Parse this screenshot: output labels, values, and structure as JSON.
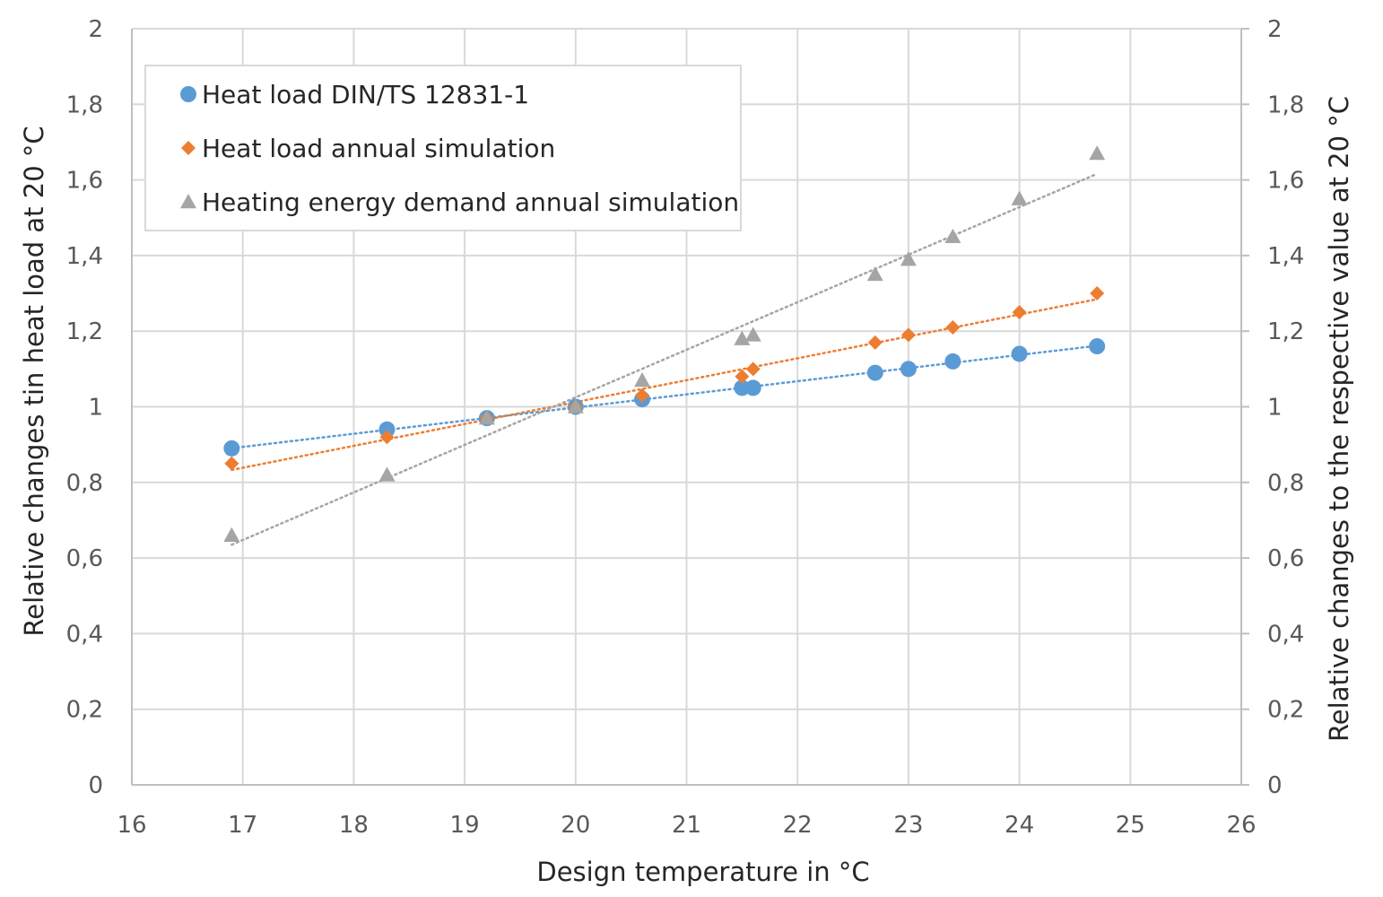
{
  "chart_data": {
    "type": "scatter",
    "xlabel": "Design temperature in °C",
    "ylabel": "Relative changes tin heat load at 20 °C",
    "y2label": "Relative changes to the respective value at 20 °C",
    "xlim": [
      16,
      26
    ],
    "ylim": [
      0,
      2
    ],
    "x_ticks": [
      "16",
      "17",
      "18",
      "19",
      "20",
      "21",
      "22",
      "23",
      "24",
      "25",
      "26"
    ],
    "y_ticks": [
      "0",
      "0,2",
      "0,4",
      "0,6",
      "0,8",
      "1",
      "1,2",
      "1,4",
      "1,6",
      "1,8",
      "2"
    ],
    "grid": true,
    "legend_position": "top-left",
    "series": [
      {
        "name": "Heat load DIN/TS 12831-1",
        "marker": "circle",
        "color": "#5b9bd5",
        "trendline": "linear-dotted",
        "x": [
          16.9,
          18.3,
          19.2,
          20.0,
          20.6,
          21.5,
          21.6,
          22.7,
          23.0,
          23.4,
          24.0,
          24.7
        ],
        "y": [
          0.89,
          0.94,
          0.97,
          1.0,
          1.02,
          1.05,
          1.05,
          1.09,
          1.1,
          1.12,
          1.14,
          1.16
        ]
      },
      {
        "name": "Heat load annual simulation",
        "marker": "diamond",
        "color": "#ed7d31",
        "trendline": "linear-dotted",
        "x": [
          16.9,
          18.3,
          19.2,
          20.0,
          20.6,
          21.5,
          21.6,
          22.7,
          23.0,
          23.4,
          24.0,
          24.7
        ],
        "y": [
          0.85,
          0.92,
          0.97,
          1.0,
          1.03,
          1.08,
          1.1,
          1.17,
          1.19,
          1.21,
          1.25,
          1.3
        ]
      },
      {
        "name": "Heating energy demand annual simulation",
        "marker": "triangle",
        "color": "#a5a5a5",
        "trendline": "linear-dotted",
        "x": [
          16.9,
          18.3,
          19.2,
          20.0,
          20.6,
          21.5,
          21.6,
          22.7,
          23.0,
          23.4,
          24.0,
          24.7
        ],
        "y": [
          0.66,
          0.82,
          0.97,
          1.0,
          1.07,
          1.18,
          1.19,
          1.35,
          1.39,
          1.45,
          1.55,
          1.67
        ]
      }
    ]
  }
}
